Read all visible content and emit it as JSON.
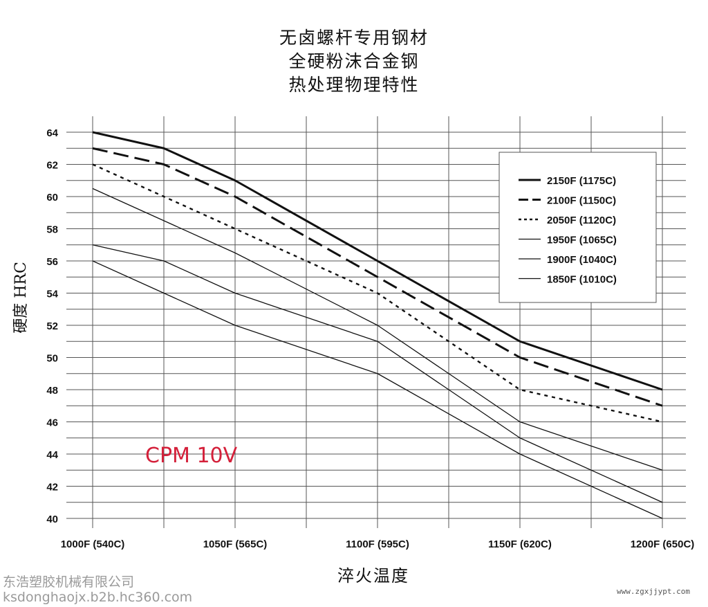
{
  "chart_data": {
    "type": "line",
    "title_lines": [
      "无卤螺杆专用钢材",
      "全硬粉沫合金钢",
      "热处理物理特性"
    ],
    "xlabel": "淬火温度",
    "ylabel": "硬度 HRC",
    "x_ticks": [
      "1000F (540C)",
      "1050F (565C)",
      "1100F (595C)",
      "1150F (620C)",
      "1200F (650C)"
    ],
    "x": [
      1000,
      1025,
      1050,
      1075,
      1100,
      1125,
      1150,
      1175,
      1200
    ],
    "xlim": [
      1000,
      1200
    ],
    "ylim": [
      40,
      64
    ],
    "y_ticks": [
      40,
      42,
      44,
      46,
      48,
      50,
      52,
      54,
      56,
      58,
      60,
      62,
      64
    ],
    "grid": true,
    "legend_position": "top-right",
    "series": [
      {
        "name": "2150F (1175C)",
        "style": "solid-thick",
        "values": [
          64,
          63,
          61,
          null,
          56,
          null,
          51,
          null,
          48
        ]
      },
      {
        "name": "2100F (1150C)",
        "style": "dashed",
        "values": [
          63,
          62,
          60,
          null,
          55,
          null,
          50,
          null,
          47
        ]
      },
      {
        "name": "2050F (1120C)",
        "style": "dotted",
        "values": [
          62,
          60,
          58,
          null,
          54,
          null,
          48,
          null,
          46
        ]
      },
      {
        "name": "1950F (1065C)",
        "style": "thin",
        "values": [
          60.5,
          58.5,
          56.5,
          null,
          52,
          null,
          46,
          null,
          43
        ]
      },
      {
        "name": "1900F (1040C)",
        "style": "thin",
        "values": [
          57,
          56,
          54,
          null,
          51,
          null,
          45,
          null,
          41
        ]
      },
      {
        "name": "1850F (1010C)",
        "style": "thin",
        "values": [
          56,
          54,
          52,
          null,
          49,
          null,
          44,
          null,
          40
        ]
      }
    ],
    "annotation": "CPM 10V",
    "colors": {
      "annotation": "#d4203a",
      "lines": "#111111",
      "grid": "#555555"
    }
  },
  "watermarks": {
    "left_line1": "东浩塑胶机械有限公司",
    "left_line2": "ksdonghaojx.b2b.hc360.com",
    "right": "www.zgxjjypt.com"
  }
}
